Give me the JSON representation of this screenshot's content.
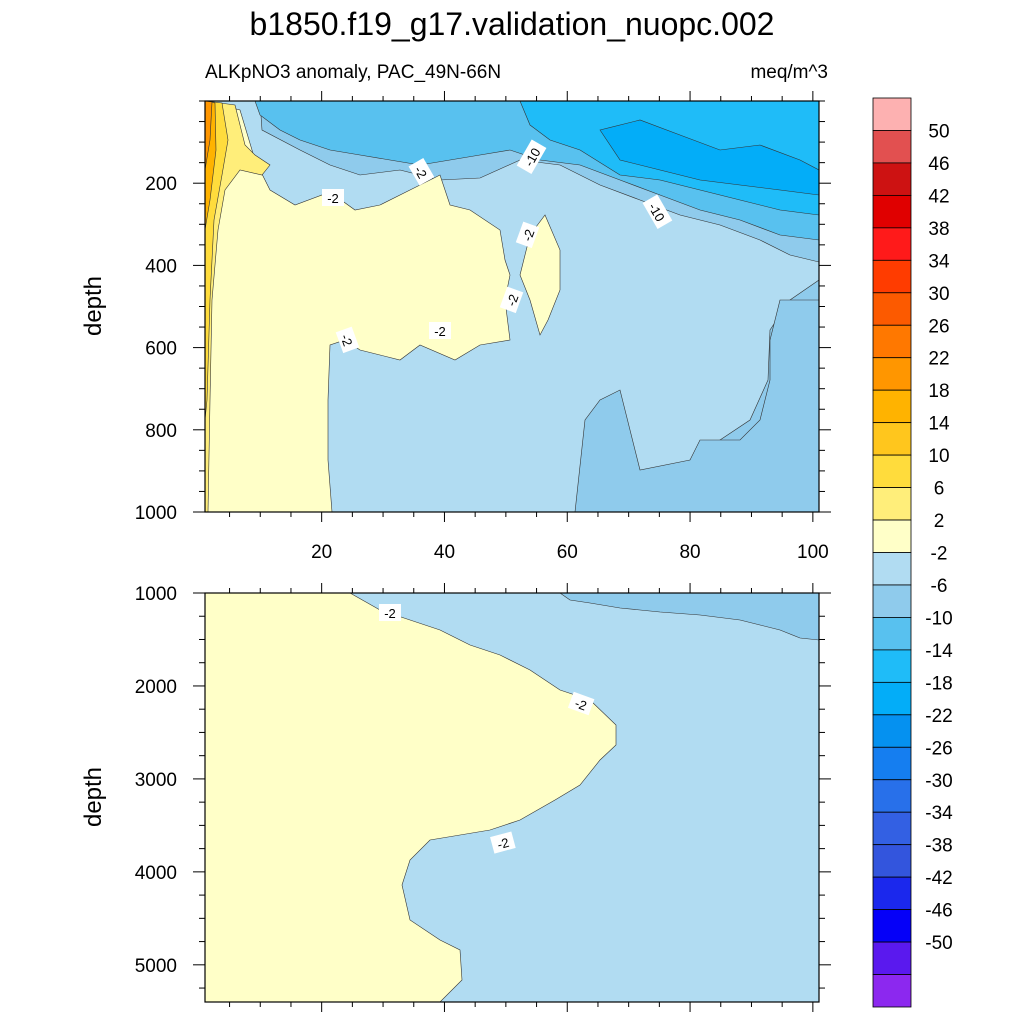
{
  "chart_data": {
    "type": "contour",
    "title": "b1850.f19_g17.validation_nuopc.002",
    "subtitle_left": "ALKpNO3 anomaly, PAC_49N-66N",
    "subtitle_right": "meq/m^3",
    "xlabel": "",
    "ylabel": "depth",
    "x_ticks": [
      20,
      40,
      60,
      80,
      100
    ],
    "xlim": [
      1,
      101
    ],
    "upper_panel": {
      "ylim": [
        1000,
        0
      ],
      "y_ticks": [
        200,
        400,
        600,
        800,
        1000
      ],
      "contour_labels": [
        "-2",
        "-2",
        "-2",
        "-2",
        "-2",
        "-2",
        "-2",
        "-10",
        "-10"
      ]
    },
    "lower_panel": {
      "ylim": [
        5400,
        1000
      ],
      "y_ticks": [
        1000,
        2000,
        3000,
        4000,
        5000
      ],
      "contour_labels": [
        "-2",
        "-2",
        "-2"
      ]
    },
    "colorbar": {
      "levels": [
        "50",
        "46",
        "42",
        "38",
        "34",
        "30",
        "26",
        "22",
        "18",
        "14",
        "10",
        "6",
        "2",
        "-2",
        "-6",
        "-10",
        "-14",
        "-18",
        "-22",
        "-26",
        "-30",
        "-34",
        "-38",
        "-42",
        "-46",
        "-50"
      ],
      "colors": [
        "#fdb1b1",
        "#e25050",
        "#cd1212",
        "#e00000",
        "#ff1a1a",
        "#ff3c00",
        "#fc5a00",
        "#ff7800",
        "#ff9600",
        "#ffb300",
        "#ffc61d",
        "#ffdc3c",
        "#ffee7a",
        "#ffffc8",
        "#b1dcf2",
        "#8fcbec",
        "#58c1ef",
        "#1fbcf8",
        "#03adf8",
        "#0591f0",
        "#157ef0",
        "#2870ea",
        "#3360e3",
        "#3355dd",
        "#1b28ed",
        "#0500f8",
        "#5a19ee",
        "#8c28ef"
      ]
    }
  }
}
